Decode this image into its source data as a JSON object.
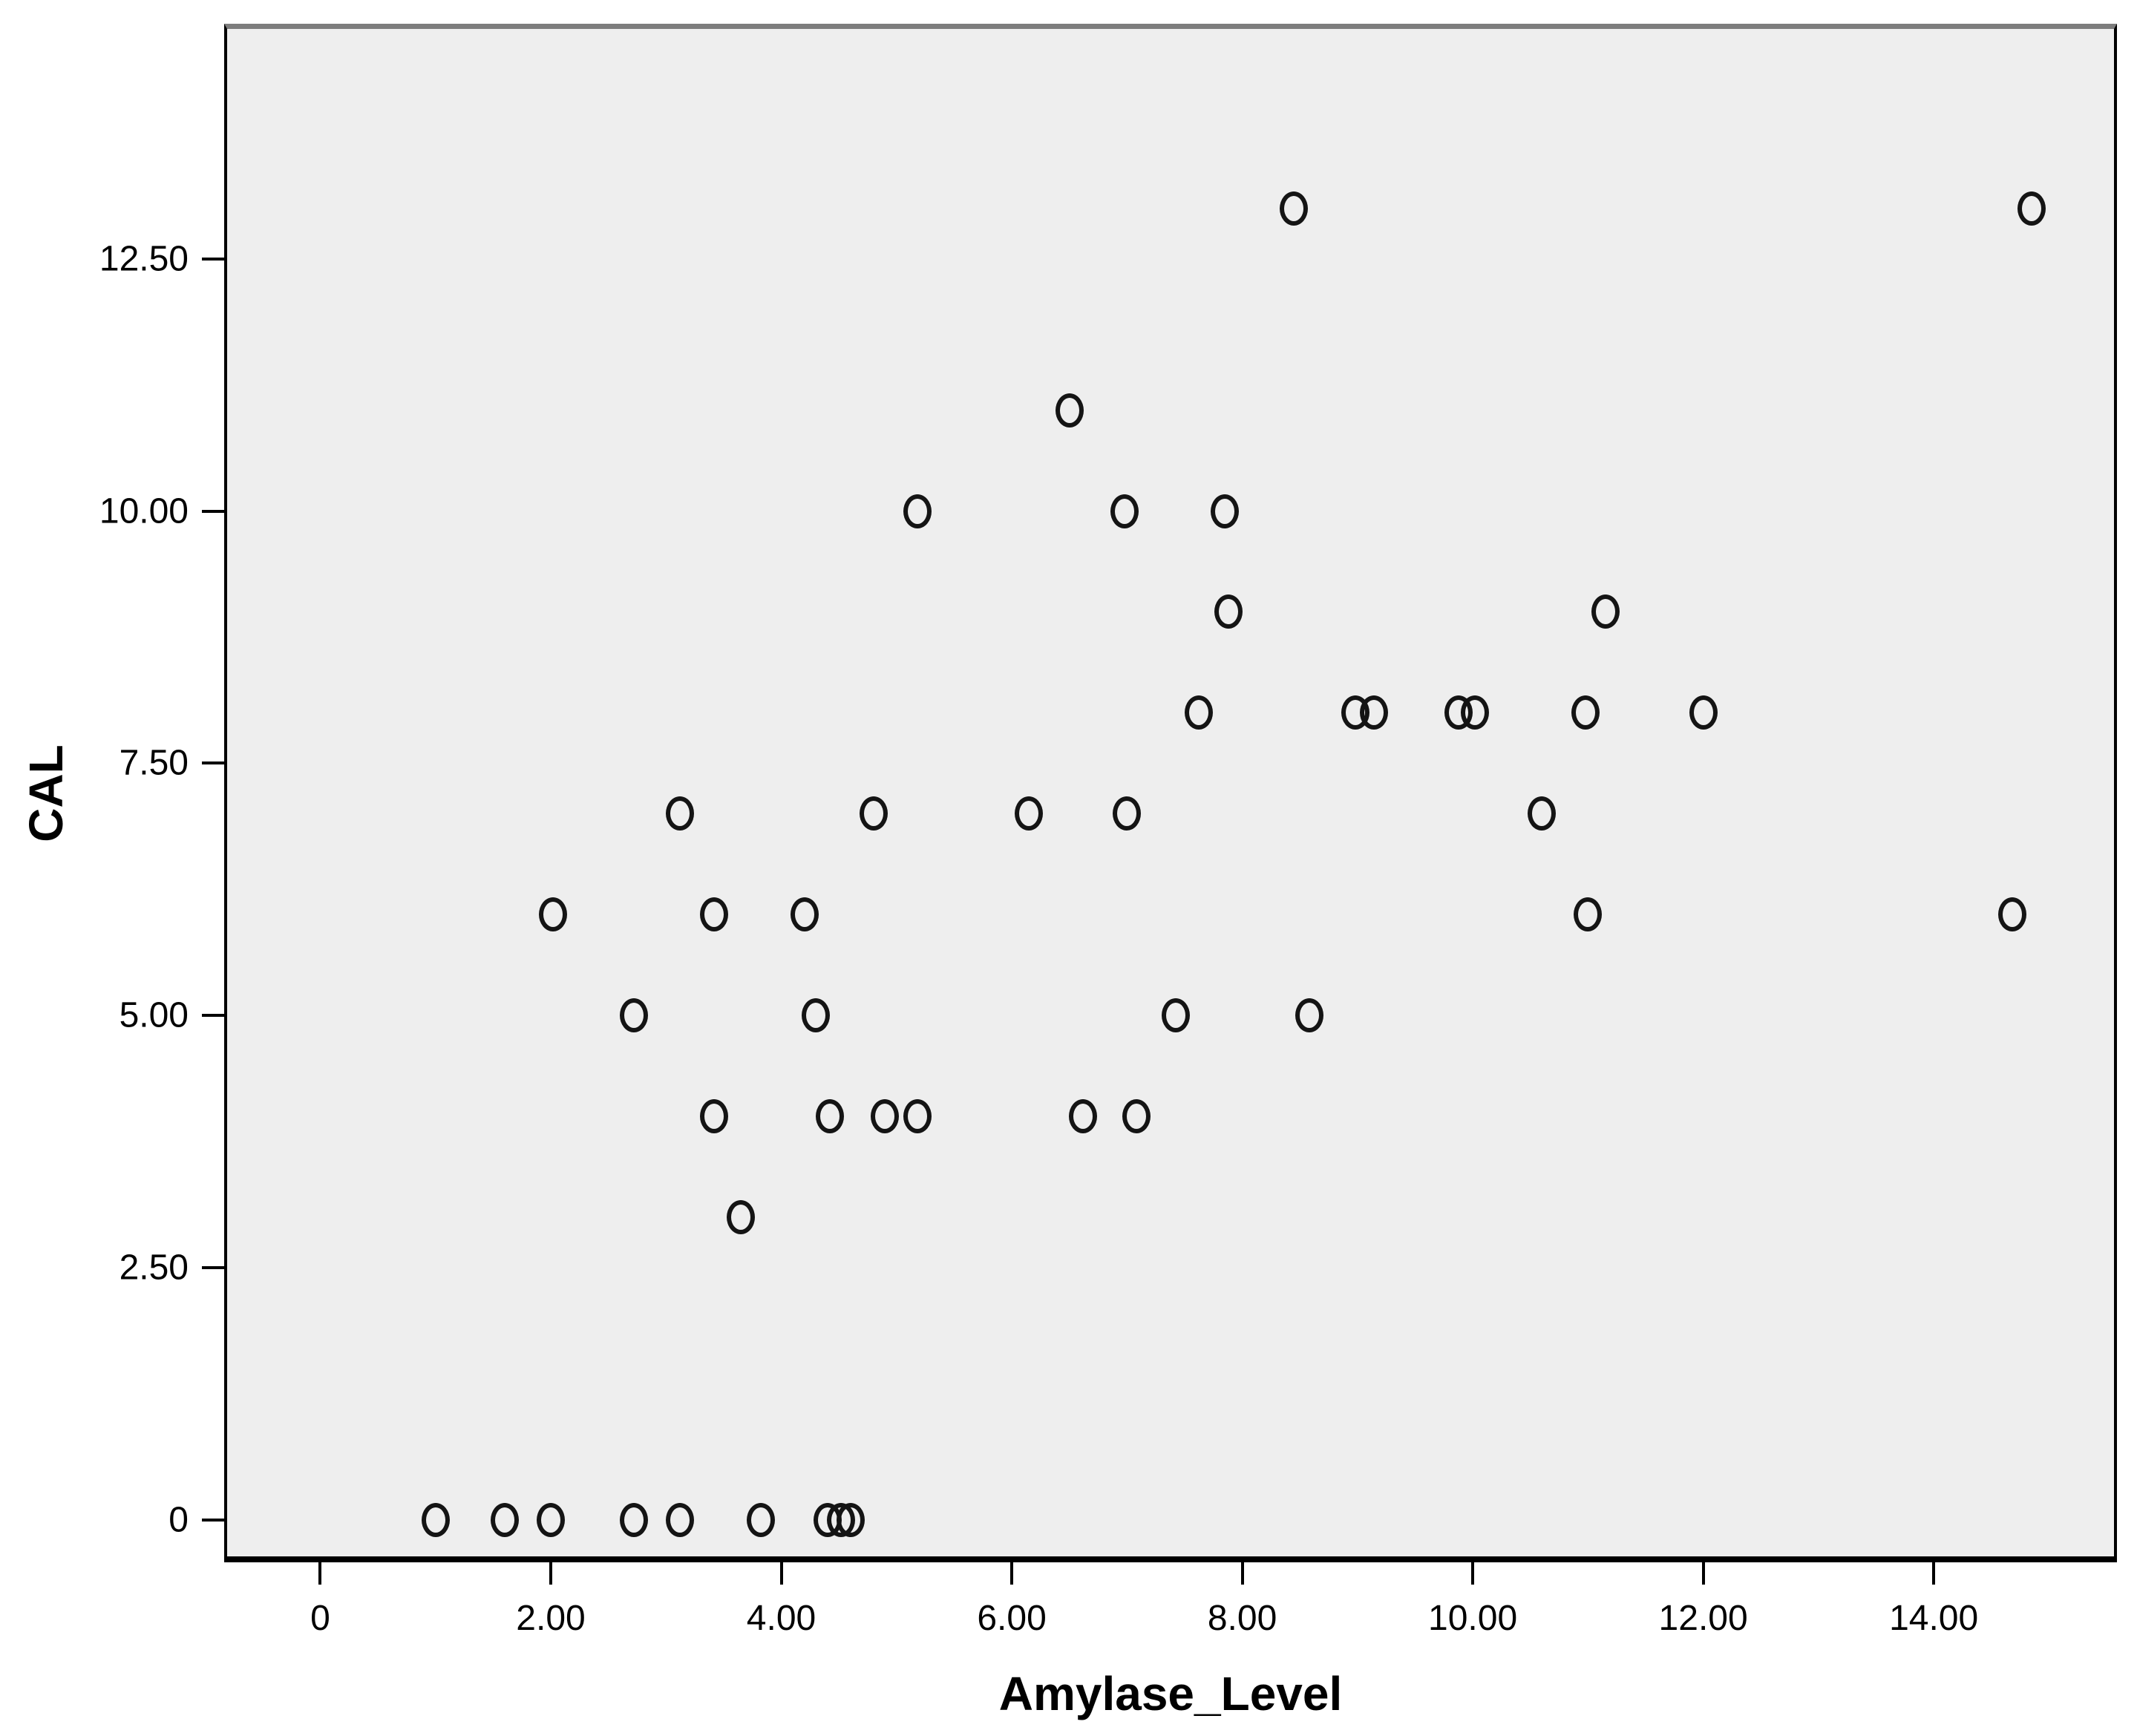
{
  "chart_data": {
    "type": "scatter",
    "title": "",
    "xlabel": "Amylase_Level",
    "ylabel": "CAL",
    "legend": "none",
    "grid": false,
    "plot_bg": "#eeeeee",
    "frame_color": "#000000",
    "frame_top_color": "#7d7d7d",
    "marker_color": "#141414",
    "marker_shape": "open-circle",
    "xlim": [
      -0.834,
      15.59
    ],
    "ylim": [
      -0.42,
      14.83
    ],
    "x_ticks": {
      "values": [
        0,
        2,
        4,
        6,
        8,
        10,
        12,
        14
      ],
      "labels": [
        "0",
        "2.00",
        "4.00",
        "6.00",
        "8.00",
        "10.00",
        "12.00",
        "14.00"
      ]
    },
    "y_ticks": {
      "values": [
        0,
        2.5,
        5,
        7.5,
        10,
        12.5
      ],
      "labels": [
        "0",
        "2.50",
        "5.00",
        "7.50",
        "10.00",
        "12.50"
      ]
    },
    "points": [
      [
        1.0,
        0
      ],
      [
        1.6,
        0
      ],
      [
        2.0,
        0
      ],
      [
        2.72,
        0
      ],
      [
        3.12,
        0
      ],
      [
        3.82,
        0
      ],
      [
        4.4,
        0
      ],
      [
        4.52,
        0
      ],
      [
        4.6,
        0
      ],
      [
        3.65,
        3
      ],
      [
        3.42,
        4
      ],
      [
        4.42,
        4
      ],
      [
        4.9,
        4
      ],
      [
        5.18,
        4
      ],
      [
        6.62,
        4
      ],
      [
        7.08,
        4
      ],
      [
        2.72,
        5
      ],
      [
        4.3,
        5
      ],
      [
        7.42,
        5
      ],
      [
        8.58,
        5
      ],
      [
        2.02,
        6
      ],
      [
        3.42,
        6
      ],
      [
        4.2,
        6
      ],
      [
        11.0,
        6
      ],
      [
        14.68,
        6
      ],
      [
        3.12,
        7
      ],
      [
        4.8,
        7
      ],
      [
        6.15,
        7
      ],
      [
        7.0,
        7
      ],
      [
        10.6,
        7
      ],
      [
        7.62,
        8
      ],
      [
        8.98,
        8
      ],
      [
        9.14,
        8
      ],
      [
        9.88,
        8
      ],
      [
        10.02,
        8
      ],
      [
        10.98,
        8
      ],
      [
        12.0,
        8
      ],
      [
        7.88,
        9
      ],
      [
        11.15,
        9
      ],
      [
        5.18,
        10
      ],
      [
        6.98,
        10
      ],
      [
        7.85,
        10
      ],
      [
        6.5,
        11
      ],
      [
        8.45,
        13
      ],
      [
        14.85,
        13
      ]
    ]
  }
}
